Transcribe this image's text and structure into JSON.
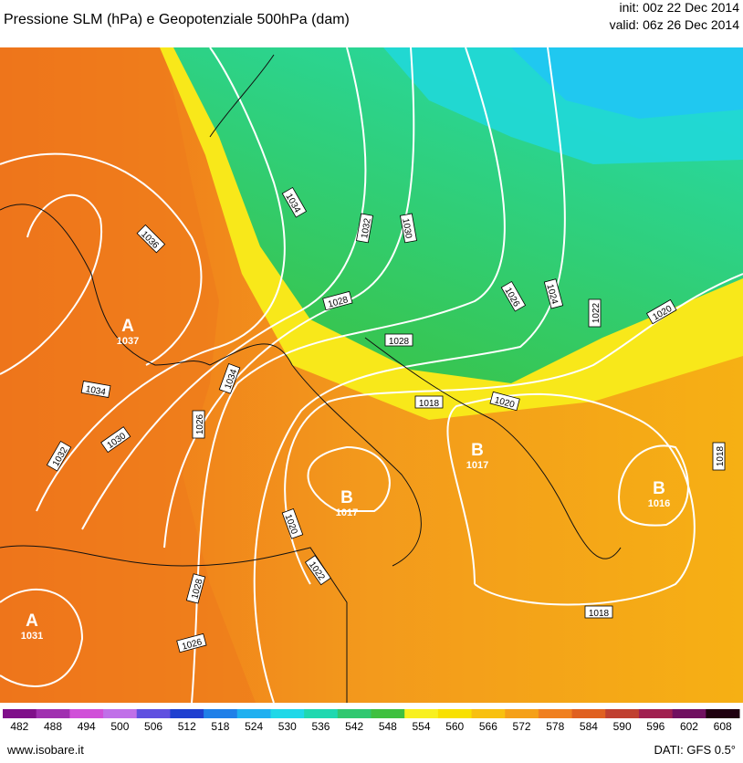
{
  "header": {
    "title": "Pressione SLM (hPa) e Geopotenziale 500hPa (dam)",
    "init": "init: 00z 22 Dec 2014",
    "valid": "valid: 06z 26 Dec 2014"
  },
  "isobars": {
    "labels": [
      "1036",
      "1034",
      "1032",
      "1030",
      "1028",
      "1026",
      "1024",
      "1022",
      "1020",
      "1028",
      "1034",
      "1034",
      "1026",
      "1030",
      "1032",
      "1018",
      "1020",
      "1020",
      "1022",
      "1028",
      "1026",
      "1018",
      "1018"
    ]
  },
  "centers": [
    {
      "symbol": "A",
      "value": "1037"
    },
    {
      "symbol": "A",
      "value": "1031"
    },
    {
      "symbol": "B",
      "value": "1017"
    },
    {
      "symbol": "B",
      "value": "1017"
    },
    {
      "symbol": "B",
      "value": "1016"
    }
  ],
  "colorbar": {
    "labels": [
      "482",
      "488",
      "494",
      "500",
      "506",
      "512",
      "518",
      "524",
      "530",
      "536",
      "542",
      "548",
      "554",
      "560",
      "566",
      "572",
      "578",
      "584",
      "590",
      "596",
      "602",
      "608"
    ],
    "colors": [
      "#80108a",
      "#a030b0",
      "#d050d8",
      "#c070e8",
      "#6050e0",
      "#2040d0",
      "#2080e8",
      "#20b0f0",
      "#20d8e8",
      "#20d8b0",
      "#30c870",
      "#40c040",
      "#f8f020",
      "#f8e000",
      "#f8c010",
      "#f5a018",
      "#f08020",
      "#e06020",
      "#c04030",
      "#a02050",
      "#701060",
      "#200010"
    ]
  },
  "footer": {
    "site": "www.isobare.it",
    "source": "DATI: GFS 0.5°"
  }
}
